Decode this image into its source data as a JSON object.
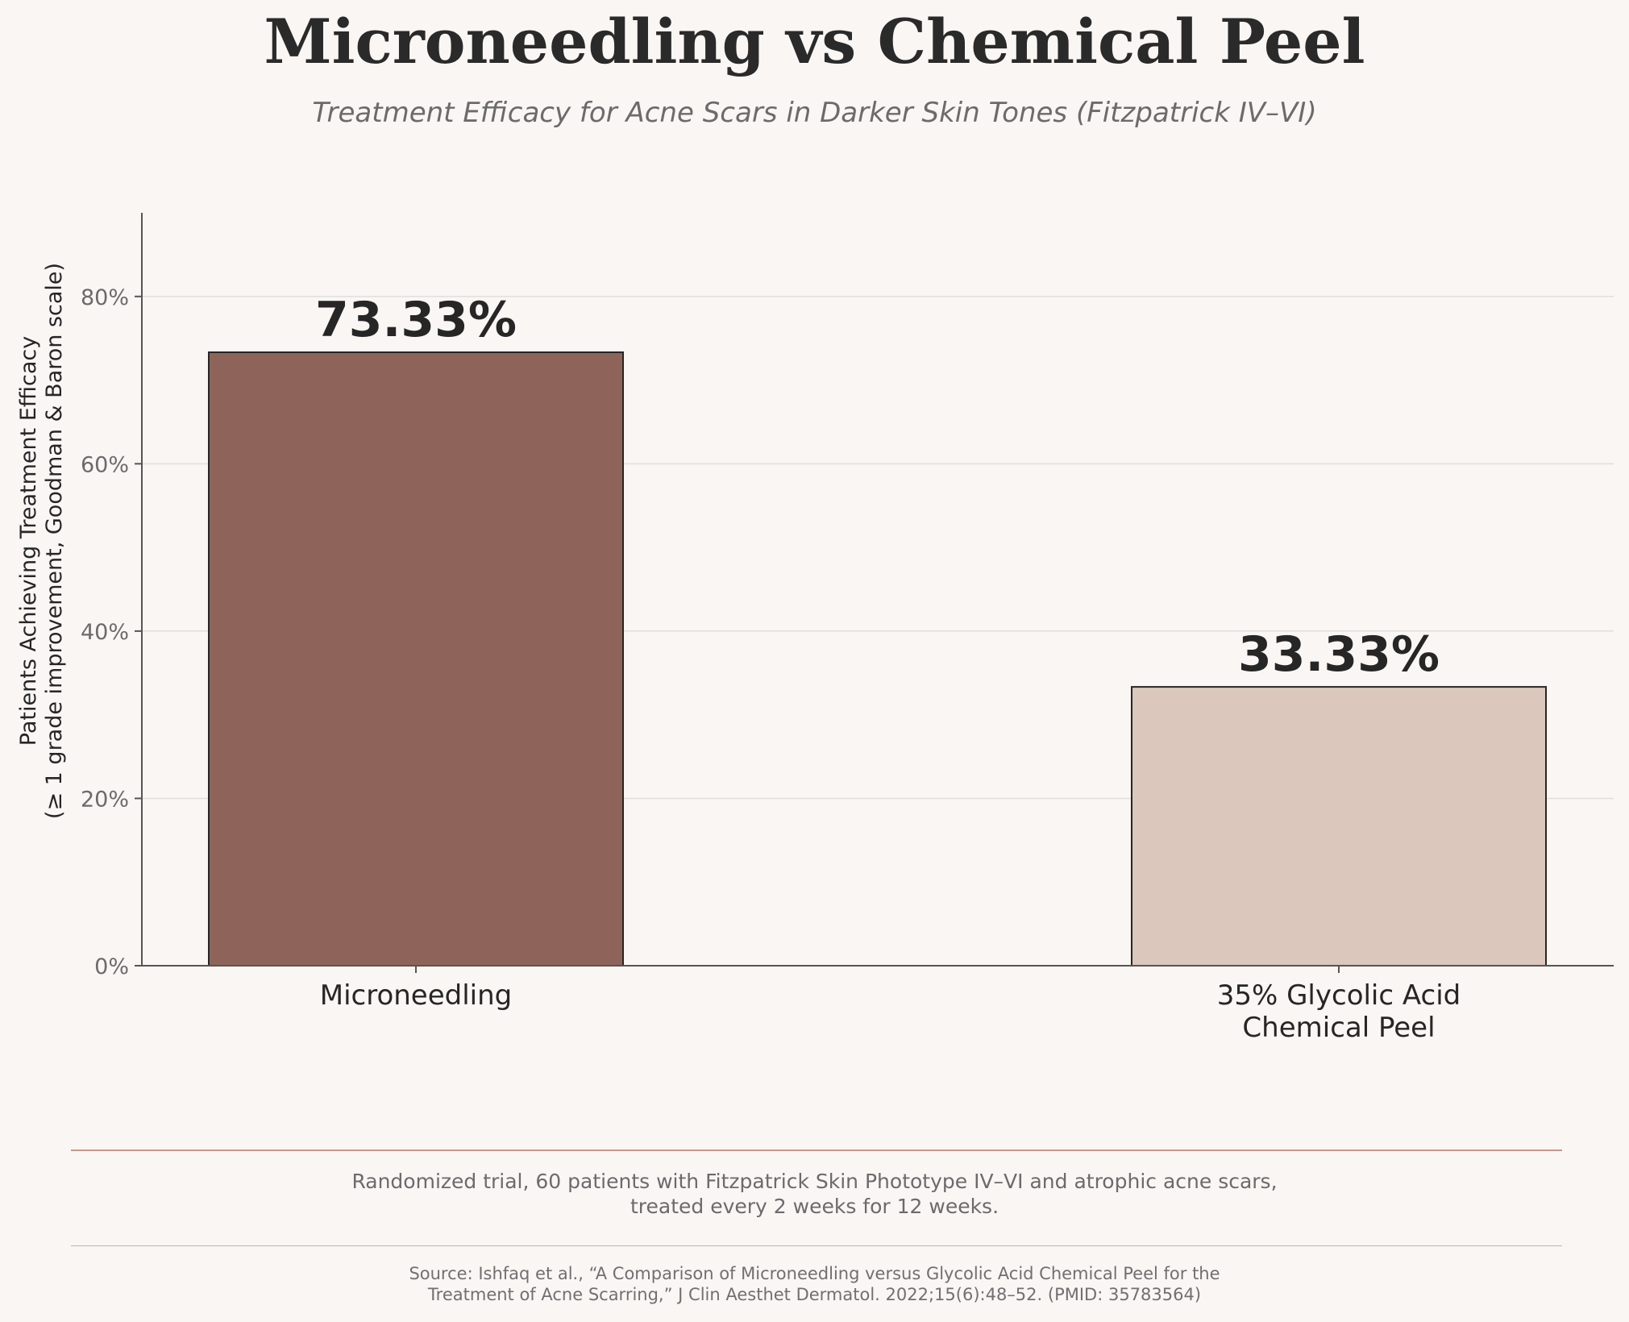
{
  "title": "Microneedling vs Chemical Peel",
  "subtitle": "Treatment Efficacy for Acne Scars in Darker Skin Tones (Fitzpatrick IV–VI)",
  "chart_data": {
    "type": "bar",
    "title": "Microneedling vs Chemical Peel",
    "subtitle": "Treatment Efficacy for Acne Scars in Darker Skin Tones (Fitzpatrick IV–VI)",
    "categories": [
      "Microneedling",
      "35% Glycolic Acid\nChemical Peel"
    ],
    "values": [
      73.33,
      33.33
    ],
    "value_labels": [
      "73.33%",
      "33.33%"
    ],
    "bar_colors": [
      "#8e645a",
      "#dbc7bc"
    ],
    "bar_edge_color": "#262626",
    "xlabel": "",
    "ylabel": [
      "Patients Achieving Treatment Efficacy",
      "(≥ 1 grade improvement, Goodman & Baron scale)"
    ],
    "ylim": [
      0,
      90
    ],
    "yticks": [
      0,
      20,
      40,
      60,
      80
    ],
    "ytick_labels": [
      "0%",
      "20%",
      "40%",
      "60%",
      "80%"
    ],
    "grid": "horizontal",
    "legend": "none"
  },
  "footer": {
    "study_note": [
      "Randomized trial, 60 patients with Fitzpatrick Skin Phototype IV–VI and atrophic acne scars,",
      "treated every 2 weeks for 12 weeks."
    ],
    "source": [
      "Source: Ishfaq et al., “A Comparison of Microneedling versus Glycolic Acid Chemical Peel for the",
      "Treatment of Acne Scarring,” J Clin Aesthet Dermatol. 2022;15(6):48–52. (PMID: 35783564)"
    ]
  },
  "colors": {
    "background": "#f9f6f3",
    "accent_rule": "#c9988a"
  }
}
